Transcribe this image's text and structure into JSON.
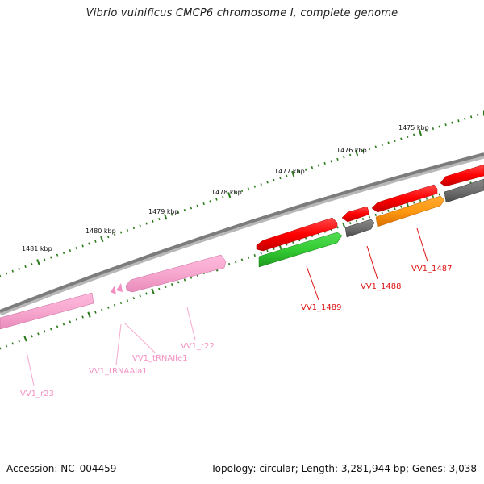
{
  "title": "Vibrio vulnificus CMCP6 chromosome I, complete genome",
  "footer": {
    "accession": "Accession: NC_004459",
    "summary": "Topology: circular; Length: 3,281,944 bp; Genes: 3,038"
  },
  "colors": {
    "backbone": "#8a8a8a",
    "tick": "#2a7a1a",
    "rna": "#f7a8cf",
    "rna_label": "#e890c0",
    "cds_forward": "#ff1010",
    "cds_reverse_green": "#33cc33",
    "cds_reverse_orange": "#ff9911",
    "cds_gray": "#6f6f6f",
    "cds_label": "#dd1111"
  },
  "tick_labels": [
    "1481 kbp",
    "1480 kbp",
    "1479 kbp",
    "1478 kbp",
    "1477 kbp",
    "1476 kbp",
    "1475 kbp"
  ],
  "genes": [
    {
      "label": "VV1_r23",
      "type": "rRNA"
    },
    {
      "label": "VV1_tRNAAla1",
      "type": "tRNA"
    },
    {
      "label": "VV1_tRNAIle1",
      "type": "tRNA"
    },
    {
      "label": "VV1_r22",
      "type": "rRNA"
    },
    {
      "label": "VV1_1489",
      "type": "CDS"
    },
    {
      "label": "VV1_1488",
      "type": "CDS"
    },
    {
      "label": "VV1_1487",
      "type": "CDS"
    }
  ]
}
